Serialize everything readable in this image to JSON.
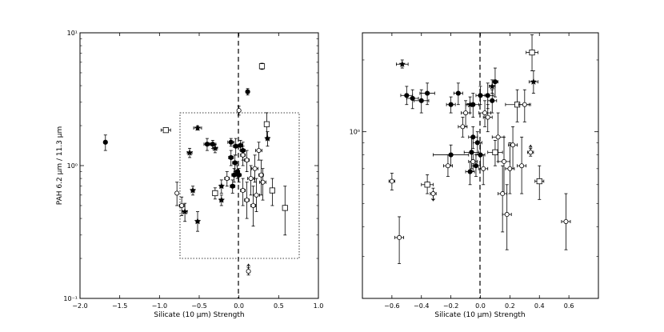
{
  "chart_data": [
    {
      "type": "scatter",
      "panel": "left",
      "xlabel": "Silicate (10 μm) Strength",
      "ylabel": "PAH 6.2 μm / 11.3 μm",
      "xlim": [
        -2.0,
        1.0
      ],
      "ylim": [
        0.1,
        10
      ],
      "yscale": "log",
      "x_ticks": [
        -2.0,
        -1.5,
        -1.0,
        -0.5,
        0.0,
        0.5,
        1.0
      ],
      "x_tick_labels": [
        "−2.0",
        "−1.5",
        "−1.0",
        "−0.5",
        "0.0",
        "0.5",
        "1.0"
      ],
      "y_major_ticks": [
        0.1,
        1,
        10
      ],
      "y_tick_labels": [
        "10⁻¹",
        "10⁰",
        "10¹"
      ],
      "vertical_line": {
        "x": 0,
        "style": "dashed"
      },
      "zoom_box": {
        "x": [
          -0.75,
          0.75
        ],
        "y": [
          0.2,
          2.5
        ],
        "style": "dotted"
      },
      "grid": false,
      "points": [
        {
          "x": -1.68,
          "y": 1.5,
          "m": "filled",
          "xe": 0.02,
          "yl": 1.3,
          "yh": 1.7
        },
        {
          "x": -0.92,
          "y": 1.85,
          "m": "square",
          "xe": 0.06,
          "yl": 1.78,
          "yh": 1.92
        },
        {
          "x": -0.52,
          "y": 1.92,
          "m": "star",
          "xe": 0.05,
          "yl": 1.85,
          "yh": 1.99
        },
        {
          "x": -0.4,
          "y": 1.45,
          "m": "filled",
          "xe": 0.04,
          "yl": 1.3,
          "yh": 1.6
        },
        {
          "x": -0.33,
          "y": 1.45,
          "m": "filled",
          "xe": 0.04,
          "yl": 1.35,
          "yh": 1.55
        },
        {
          "x": -0.3,
          "y": 1.35,
          "m": "star",
          "xe": 0.03,
          "yl": 1.25,
          "yh": 1.45
        },
        {
          "x": -0.1,
          "y": 1.5,
          "m": "filled",
          "xe": 0.04,
          "yl": 1.4,
          "yh": 1.6
        },
        {
          "x": -0.04,
          "y": 1.4,
          "m": "filled",
          "xe": 0.03,
          "yl": 1.2,
          "yh": 1.6
        },
        {
          "x": 0.02,
          "y": 1.42,
          "m": "filled",
          "xe": 0.03,
          "yl": 1.3,
          "yh": 1.55
        },
        {
          "x": 0.05,
          "y": 1.3,
          "m": "filled",
          "xe": 0.03,
          "yl": 1.1,
          "yh": 1.5
        },
        {
          "x": -0.1,
          "y": 1.15,
          "m": "filled",
          "xe": 0.03,
          "yl": 1.0,
          "yh": 1.3
        },
        {
          "x": -0.05,
          "y": 1.05,
          "m": "filled",
          "xe": 0.03,
          "yl": 0.9,
          "yh": 1.2
        },
        {
          "x": -0.06,
          "y": 0.85,
          "m": "filled",
          "xe": 0.03,
          "yl": 0.75,
          "yh": 0.95
        },
        {
          "x": -0.02,
          "y": 0.9,
          "m": "filled",
          "xe": 0.03,
          "yl": 0.8,
          "yh": 1.0
        },
        {
          "x": 0.0,
          "y": 0.85,
          "m": "filled",
          "xe": 0.03,
          "yl": 0.75,
          "yh": 0.95
        },
        {
          "x": -0.08,
          "y": 0.7,
          "m": "filled",
          "xe": 0.03,
          "yl": 0.62,
          "yh": 0.78
        },
        {
          "x": 0.11,
          "y": 3.6,
          "m": "filled",
          "xe": 0.02,
          "yl": 3.4,
          "yh": 3.8
        },
        {
          "x": 0.05,
          "y": 1.2,
          "m": "open",
          "xe": 0.03,
          "yl": 1.0,
          "yh": 1.4
        },
        {
          "x": 0.1,
          "y": 1.1,
          "m": "open",
          "xe": 0.03,
          "yl": 0.9,
          "yh": 1.3
        },
        {
          "x": 0.2,
          "y": 0.95,
          "m": "open",
          "xe": 0.04,
          "yl": 0.75,
          "yh": 1.2
        },
        {
          "x": 0.15,
          "y": 0.8,
          "m": "open",
          "xe": 0.04,
          "yl": 0.6,
          "yh": 1.0
        },
        {
          "x": 0.22,
          "y": 0.6,
          "m": "open",
          "xe": 0.04,
          "yl": 0.45,
          "yh": 0.8
        },
        {
          "x": 0.3,
          "y": 0.75,
          "m": "open",
          "xe": 0.04,
          "yl": 0.55,
          "yh": 0.95
        },
        {
          "x": 0.1,
          "y": 0.55,
          "m": "open",
          "xe": 0.03,
          "yl": 0.4,
          "yh": 0.75
        },
        {
          "x": 0.18,
          "y": 0.5,
          "m": "open",
          "xe": 0.03,
          "yl": 0.35,
          "yh": 0.7
        },
        {
          "x": 0.05,
          "y": 0.65,
          "m": "open",
          "xe": 0.03,
          "yl": 0.5,
          "yh": 0.8
        },
        {
          "x": 0.25,
          "y": 1.3,
          "m": "open",
          "xe": 0.04,
          "yl": 1.1,
          "yh": 1.5
        },
        {
          "x": -0.15,
          "y": 0.8,
          "m": "open",
          "xe": 0.03,
          "yl": 0.7,
          "yh": 0.9
        },
        {
          "x": 0.28,
          "y": 0.85,
          "m": "open",
          "xe": 0.03,
          "yl": 0.6,
          "yh": 1.1
        },
        {
          "x": 0.35,
          "y": 2.05,
          "m": "square",
          "xe": 0.03,
          "yl": 1.6,
          "yh": 2.5
        },
        {
          "x": 0.42,
          "y": 0.65,
          "m": "square",
          "xe": 0.03,
          "yl": 0.5,
          "yh": 0.8
        },
        {
          "x": 0.58,
          "y": 0.48,
          "m": "square",
          "xe": 0.02,
          "yl": 0.3,
          "yh": 0.7
        },
        {
          "x": 0.29,
          "y": 5.6,
          "m": "square",
          "xe": 0.02,
          "yl": 5.3,
          "yh": 5.9
        },
        {
          "x": -0.3,
          "y": 0.62,
          "m": "square",
          "xe": 0.03,
          "yl": 0.56,
          "yh": 0.68
        },
        {
          "x": -0.62,
          "y": 1.25,
          "m": "star",
          "xe": 0.03,
          "yl": 1.15,
          "yh": 1.35
        },
        {
          "x": -0.58,
          "y": 0.65,
          "m": "star",
          "xe": 0.02,
          "yl": 0.6,
          "yh": 0.7
        },
        {
          "x": -0.52,
          "y": 0.38,
          "m": "star",
          "xe": 0.02,
          "yl": 0.32,
          "yh": 0.45
        },
        {
          "x": -0.22,
          "y": 0.55,
          "m": "star",
          "xe": 0.02,
          "yl": 0.5,
          "yh": 0.6
        },
        {
          "x": -0.22,
          "y": 0.7,
          "m": "star",
          "xe": 0.02,
          "yl": 0.62,
          "yh": 0.78
        },
        {
          "x": 0.36,
          "y": 1.6,
          "m": "star",
          "xe": 0.02,
          "yl": 1.4,
          "yh": 1.8
        },
        {
          "x": -0.78,
          "y": 0.62,
          "m": "open",
          "xe": 0.02,
          "yl": 0.5,
          "yh": 0.75
        },
        {
          "x": -0.72,
          "y": 0.5,
          "m": "open",
          "xe": 0.03,
          "yl": 0.42,
          "yh": 0.58
        },
        {
          "x": -0.68,
          "y": 0.45,
          "m": "star",
          "xe": 0.03,
          "yl": 0.38,
          "yh": 0.52
        },
        {
          "x": 0.0,
          "y": 2.6,
          "m": "open",
          "xe": 0.01,
          "yl": 2.4,
          "yh": 2.8
        },
        {
          "x": 0.12,
          "y": 0.16,
          "m": "open",
          "xe": 0.01,
          "yl": 0.15,
          "yh": 0.17,
          "up": true
        }
      ]
    },
    {
      "type": "scatter",
      "panel": "right",
      "xlabel": "Silicate (10 μm) Strength",
      "xlim": [
        -0.8,
        0.8
      ],
      "ylim": [
        0.2,
        2.6
      ],
      "yscale": "log",
      "x_ticks": [
        -0.6,
        -0.4,
        -0.2,
        0.0,
        0.2,
        0.4,
        0.6
      ],
      "x_tick_labels": [
        "−0.6",
        "−0.4",
        "−0.2",
        "0.0",
        "0.2",
        "0.4",
        "0.6"
      ],
      "y_major_ticks": [
        1
      ],
      "y_tick_labels": [
        "10⁰"
      ],
      "vertical_line": {
        "x": 0,
        "style": "dashed"
      },
      "grid": false,
      "points": [
        {
          "x": -0.53,
          "y": 1.92,
          "m": "star",
          "xe": 0.04,
          "yl": 1.85,
          "yh": 2.0
        },
        {
          "x": -0.5,
          "y": 1.42,
          "m": "filled",
          "xe": 0.04,
          "yl": 1.3,
          "yh": 1.55
        },
        {
          "x": -0.46,
          "y": 1.38,
          "m": "filled",
          "xe": 0.04,
          "yl": 1.25,
          "yh": 1.5
        },
        {
          "x": -0.4,
          "y": 1.35,
          "m": "filled",
          "xe": 0.05,
          "yl": 1.2,
          "yh": 1.5
        },
        {
          "x": -0.36,
          "y": 1.45,
          "m": "filled",
          "xe": 0.05,
          "yl": 1.3,
          "yh": 1.6
        },
        {
          "x": -0.2,
          "y": 1.3,
          "m": "filled",
          "xe": 0.03,
          "yl": 1.2,
          "yh": 1.4
        },
        {
          "x": -0.15,
          "y": 1.45,
          "m": "filled",
          "xe": 0.03,
          "yl": 1.3,
          "yh": 1.6
        },
        {
          "x": -0.05,
          "y": 1.3,
          "m": "filled",
          "xe": 0.04,
          "yl": 1.15,
          "yh": 1.45
        },
        {
          "x": 0.0,
          "y": 1.42,
          "m": "filled",
          "xe": 0.03,
          "yl": 1.3,
          "yh": 1.55
        },
        {
          "x": 0.05,
          "y": 1.42,
          "m": "filled",
          "xe": 0.04,
          "yl": 1.25,
          "yh": 1.6
        },
        {
          "x": 0.08,
          "y": 1.35,
          "m": "filled",
          "xe": 0.03,
          "yl": 1.2,
          "yh": 1.5
        },
        {
          "x": -0.05,
          "y": 0.95,
          "m": "filled",
          "xe": 0.03,
          "yl": 0.85,
          "yh": 1.05
        },
        {
          "x": -0.02,
          "y": 0.9,
          "m": "filled",
          "xe": 0.03,
          "yl": 0.8,
          "yh": 1.0
        },
        {
          "x": -0.06,
          "y": 0.82,
          "m": "filled",
          "xe": 0.05,
          "yl": 0.7,
          "yh": 0.95
        },
        {
          "x": 0.0,
          "y": 0.8,
          "m": "filled",
          "xe": 0.03,
          "yl": 0.7,
          "yh": 0.9
        },
        {
          "x": -0.03,
          "y": 0.72,
          "m": "filled",
          "xe": 0.03,
          "yl": 0.65,
          "yh": 0.8
        },
        {
          "x": -0.07,
          "y": 0.68,
          "m": "filled",
          "xe": 0.03,
          "yl": 0.6,
          "yh": 0.75
        },
        {
          "x": -0.2,
          "y": 0.8,
          "m": "filled",
          "xe": 0.12,
          "yl": 0.72,
          "yh": 0.88
        },
        {
          "x": 0.1,
          "y": 1.62,
          "m": "filled",
          "xe": 0.02,
          "yl": 1.4,
          "yh": 1.85
        },
        {
          "x": 0.36,
          "y": 1.62,
          "m": "star",
          "xe": 0.03,
          "yl": 1.45,
          "yh": 1.8
        },
        {
          "x": 0.35,
          "y": 2.15,
          "m": "square",
          "xe": 0.04,
          "yl": 1.8,
          "yh": 2.55
        },
        {
          "x": 0.25,
          "y": 1.3,
          "m": "square",
          "xe": 0.08,
          "yl": 1.1,
          "yh": 1.5
        },
        {
          "x": 0.4,
          "y": 0.62,
          "m": "square",
          "xe": 0.03,
          "yl": 0.52,
          "yh": 0.72
        },
        {
          "x": 0.1,
          "y": 0.82,
          "m": "square",
          "xe": 0.05,
          "yl": 0.72,
          "yh": 0.92
        },
        {
          "x": -0.36,
          "y": 0.6,
          "m": "square",
          "xe": 0.04,
          "yl": 0.55,
          "yh": 0.66
        },
        {
          "x": 0.58,
          "y": 0.42,
          "m": "open",
          "xe": 0.03,
          "yl": 0.32,
          "yh": 0.55
        },
        {
          "x": -0.6,
          "y": 0.62,
          "m": "open",
          "xe": 0.02,
          "yl": 0.57,
          "yh": 0.67
        },
        {
          "x": -0.55,
          "y": 0.36,
          "m": "open",
          "xe": 0.03,
          "yl": 0.28,
          "yh": 0.44
        },
        {
          "x": -0.32,
          "y": 0.55,
          "m": "open",
          "xe": 0.02,
          "yl": 0.52,
          "yh": 0.58,
          "down": true
        },
        {
          "x": -0.05,
          "y": 0.75,
          "m": "open",
          "xe": 0.03,
          "yl": 0.68,
          "yh": 0.82
        },
        {
          "x": 0.02,
          "y": 0.7,
          "m": "open",
          "xe": 0.03,
          "yl": 0.6,
          "yh": 0.8
        },
        {
          "x": 0.05,
          "y": 1.15,
          "m": "open",
          "xe": 0.03,
          "yl": 1.0,
          "yh": 1.3
        },
        {
          "x": 0.03,
          "y": 1.2,
          "m": "open",
          "xe": 0.04,
          "yl": 1.05,
          "yh": 1.35
        },
        {
          "x": 0.12,
          "y": 0.95,
          "m": "open",
          "xe": 0.04,
          "yl": 0.75,
          "yh": 1.2
        },
        {
          "x": 0.16,
          "y": 0.75,
          "m": "open",
          "xe": 0.04,
          "yl": 0.55,
          "yh": 0.95
        },
        {
          "x": 0.15,
          "y": 0.55,
          "m": "open",
          "xe": 0.03,
          "yl": 0.38,
          "yh": 0.72
        },
        {
          "x": 0.18,
          "y": 0.45,
          "m": "open",
          "xe": 0.03,
          "yl": 0.32,
          "yh": 0.6
        },
        {
          "x": 0.2,
          "y": 0.7,
          "m": "open",
          "xe": 0.03,
          "yl": 0.55,
          "yh": 0.9
        },
        {
          "x": 0.22,
          "y": 0.88,
          "m": "open",
          "xe": 0.03,
          "yl": 0.7,
          "yh": 1.05
        },
        {
          "x": 0.28,
          "y": 0.72,
          "m": "open",
          "xe": 0.03,
          "yl": 0.55,
          "yh": 0.95
        },
        {
          "x": 0.3,
          "y": 1.3,
          "m": "open",
          "xe": 0.04,
          "yl": 1.1,
          "yh": 1.5
        },
        {
          "x": -0.12,
          "y": 1.05,
          "m": "open",
          "xe": 0.03,
          "yl": 0.95,
          "yh": 1.15
        },
        {
          "x": -0.1,
          "y": 1.2,
          "m": "open",
          "xe": 0.03,
          "yl": 1.05,
          "yh": 1.35
        },
        {
          "x": -0.22,
          "y": 0.72,
          "m": "open",
          "xe": 0.03,
          "yl": 0.65,
          "yh": 0.8
        },
        {
          "x": 0.34,
          "y": 0.82,
          "m": "open",
          "xe": 0.02,
          "yl": 0.79,
          "yh": 0.85,
          "up": true
        },
        {
          "x": 0.08,
          "y": 1.55,
          "m": "star",
          "xe": 0.02,
          "yl": 1.45,
          "yh": 1.65
        },
        {
          "x": -0.07,
          "y": 1.3,
          "m": "star",
          "xe": 0.03,
          "yl": 1.2,
          "yh": 1.4
        }
      ]
    }
  ]
}
